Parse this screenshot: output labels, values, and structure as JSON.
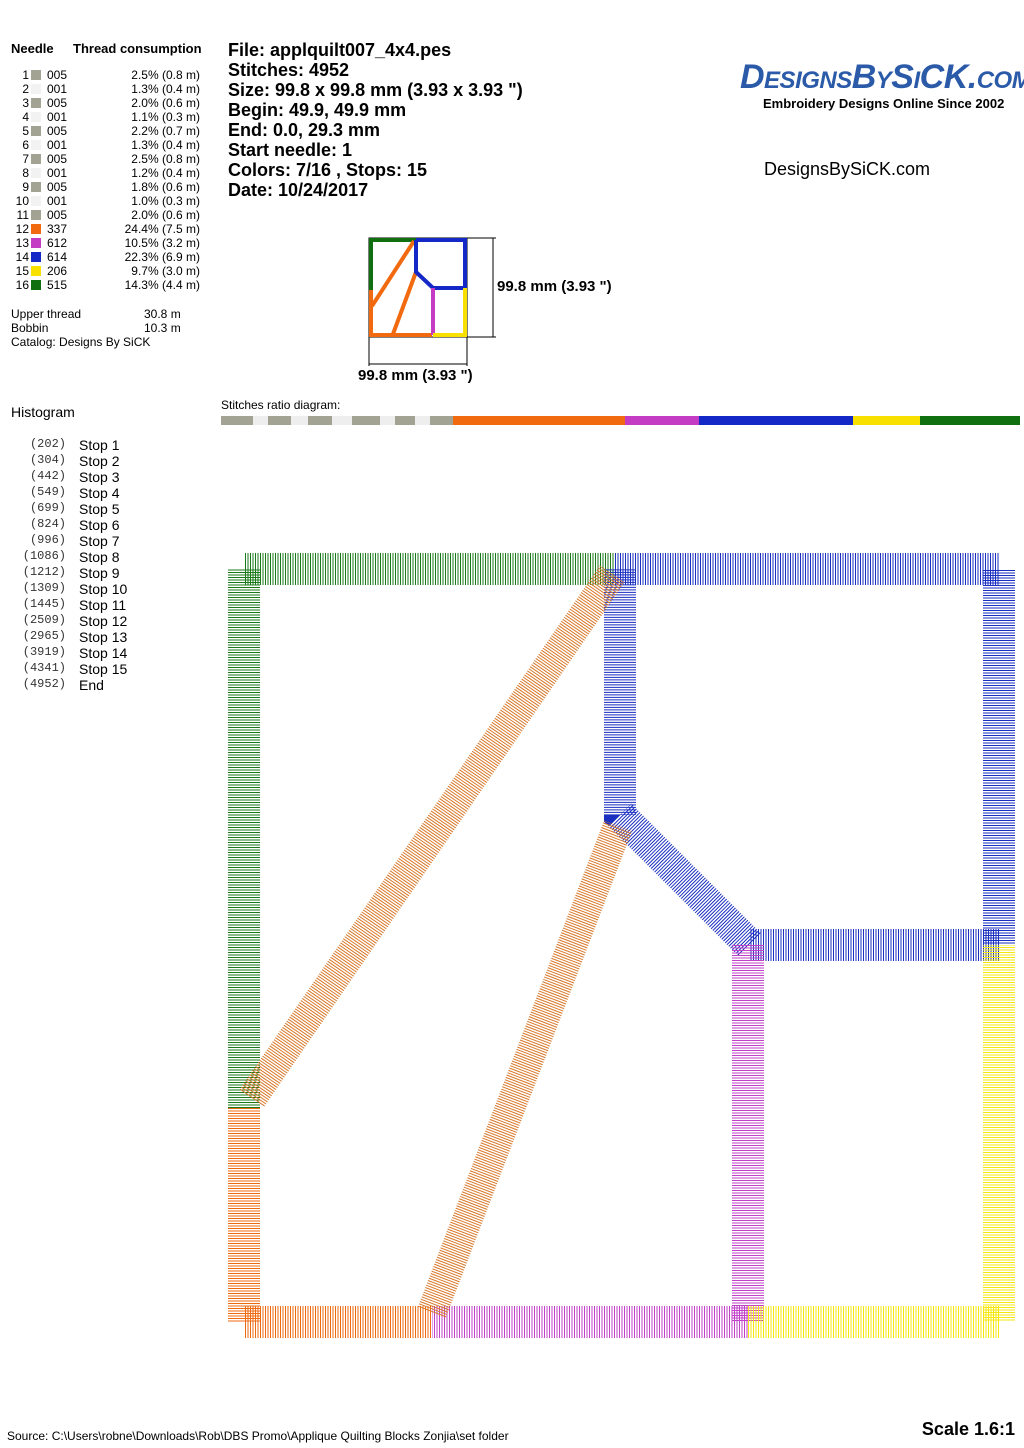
{
  "needle_table": {
    "headers": [
      "Needle",
      "Thread consumption"
    ],
    "rows": [
      {
        "needle": 1,
        "color": "#a3a393",
        "code": "005",
        "consumption": "2.5% (0.8 m)"
      },
      {
        "needle": 2,
        "color": "#f2f2f2",
        "code": "001",
        "consumption": "1.3% (0.4 m)"
      },
      {
        "needle": 3,
        "color": "#a3a393",
        "code": "005",
        "consumption": "2.0% (0.6 m)"
      },
      {
        "needle": 4,
        "color": "#f2f2f2",
        "code": "001",
        "consumption": "1.1% (0.3 m)"
      },
      {
        "needle": 5,
        "color": "#a3a393",
        "code": "005",
        "consumption": "2.2% (0.7 m)"
      },
      {
        "needle": 6,
        "color": "#f2f2f2",
        "code": "001",
        "consumption": "1.3% (0.4 m)"
      },
      {
        "needle": 7,
        "color": "#a3a393",
        "code": "005",
        "consumption": "2.5% (0.8 m)"
      },
      {
        "needle": 8,
        "color": "#f2f2f2",
        "code": "001",
        "consumption": "1.2% (0.4 m)"
      },
      {
        "needle": 9,
        "color": "#a3a393",
        "code": "005",
        "consumption": "1.8% (0.6 m)"
      },
      {
        "needle": 10,
        "color": "#f2f2f2",
        "code": "001",
        "consumption": "1.0% (0.3 m)"
      },
      {
        "needle": 11,
        "color": "#a3a393",
        "code": "005",
        "consumption": "2.0% (0.6 m)"
      },
      {
        "needle": 12,
        "color": "#f26a10",
        "code": "337",
        "consumption": "24.4% (7.5 m)"
      },
      {
        "needle": 13,
        "color": "#c43cc4",
        "code": "612",
        "consumption": "10.5% (3.2 m)"
      },
      {
        "needle": 14,
        "color": "#1428c8",
        "code": "614",
        "consumption": "22.3% (6.9 m)"
      },
      {
        "needle": 15,
        "color": "#f8e000",
        "code": "206",
        "consumption": "9.7% (3.0 m)"
      },
      {
        "needle": 16,
        "color": "#107010",
        "code": "515",
        "consumption": "14.3% (4.4 m)"
      }
    ]
  },
  "totals": [
    {
      "label": "Upper thread",
      "value": "30.8 m"
    },
    {
      "label": "Bobbin",
      "value": "10.3 m"
    }
  ],
  "catalog": "Catalog: Designs By SiCK",
  "info": [
    "File: applquilt007_4x4.pes",
    "Stitches: 4952",
    "Size: 99.8 x 99.8 mm (3.93 x 3.93 \")",
    "Begin: 49.9, 49.9 mm",
    "End: 0.0, 29.3 mm",
    "Start needle: 1",
    "Colors: 7/16 , Stops: 15",
    "Date: 10/24/2017"
  ],
  "logo": {
    "title": "DesignsBySiCK.com",
    "tagline": "Embroidery Designs Online Since 2002"
  },
  "website": "DesignsBySiCK.com",
  "dimensions": {
    "height": "99.8 mm (3.93 \")",
    "width": "99.8 mm (3.93 \")"
  },
  "histogram": {
    "title": "Histogram",
    "entries": [
      {
        "count": "(202)",
        "label": "Stop 1"
      },
      {
        "count": "(304)",
        "label": "Stop 2"
      },
      {
        "count": "(442)",
        "label": "Stop 3"
      },
      {
        "count": "(549)",
        "label": "Stop 4"
      },
      {
        "count": "(699)",
        "label": "Stop 5"
      },
      {
        "count": "(824)",
        "label": "Stop 6"
      },
      {
        "count": "(996)",
        "label": "Stop 7"
      },
      {
        "count": "(1086)",
        "label": "Stop 8"
      },
      {
        "count": "(1212)",
        "label": "Stop 9"
      },
      {
        "count": "(1309)",
        "label": "Stop 10"
      },
      {
        "count": "(1445)",
        "label": "Stop 11"
      },
      {
        "count": "(2509)",
        "label": "Stop 12"
      },
      {
        "count": "(2965)",
        "label": "Stop 13"
      },
      {
        "count": "(3919)",
        "label": "Stop 14"
      },
      {
        "count": "(4341)",
        "label": "Stop 15"
      },
      {
        "count": "(4952)",
        "label": "End"
      }
    ]
  },
  "ratio_title": "Stitches ratio diagram:",
  "footer": {
    "source": "Source: C:\\Users\\robne\\Downloads\\Rob\\DBS Promo\\Applique Quilting Blocks Zonjia\\set folder",
    "scale": "Scale 1.6:1"
  }
}
